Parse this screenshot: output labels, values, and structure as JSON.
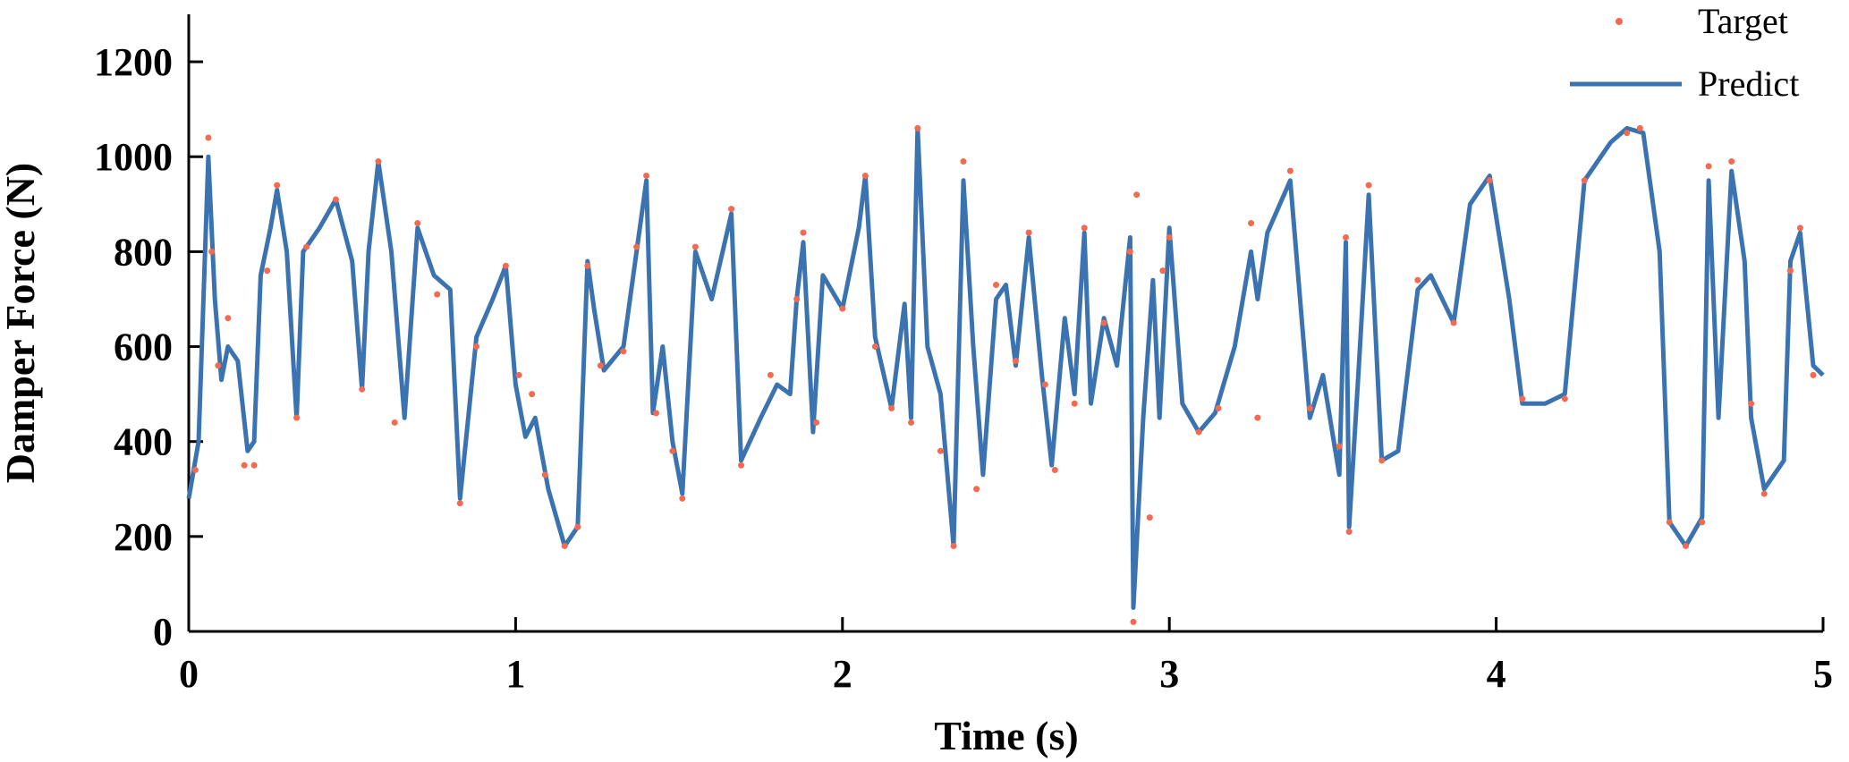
{
  "chart_data": {
    "type": "line",
    "xlabel": "Time (s)",
    "ylabel": "Damper Force (N)",
    "xlim": [
      0,
      5
    ],
    "xticks": [
      0,
      1,
      2,
      3,
      4,
      5
    ],
    "ylim": [
      0,
      1300
    ],
    "yticks": [
      0,
      200,
      400,
      600,
      800,
      1000,
      1200
    ],
    "legend": "upper right",
    "series": [
      {
        "name": "Target",
        "color": "#f26a4f",
        "mode": "markers",
        "x": [
          0.02,
          0.06,
          0.07,
          0.09,
          0.12,
          0.17,
          0.2,
          0.24,
          0.27,
          0.33,
          0.36,
          0.45,
          0.53,
          0.58,
          0.63,
          0.7,
          0.76,
          0.83,
          0.88,
          0.97,
          1.01,
          1.05,
          1.09,
          1.15,
          1.19,
          1.22,
          1.26,
          1.33,
          1.37,
          1.4,
          1.43,
          1.48,
          1.51,
          1.55,
          1.66,
          1.69,
          1.78,
          1.86,
          1.88,
          1.92,
          2.0,
          2.07,
          2.1,
          2.15,
          2.21,
          2.23,
          2.3,
          2.34,
          2.37,
          2.41,
          2.47,
          2.53,
          2.57,
          2.62,
          2.65,
          2.71,
          2.74,
          2.8,
          2.88,
          2.89,
          2.9,
          2.94,
          2.98,
          3.0,
          3.09,
          3.15,
          3.25,
          3.27,
          3.37,
          3.43,
          3.52,
          3.54,
          3.55,
          3.61,
          3.65,
          3.76,
          3.87,
          3.98,
          4.08,
          4.21,
          4.27,
          4.4,
          4.44,
          4.53,
          4.58,
          4.63,
          4.65,
          4.72,
          4.78,
          4.82,
          4.9,
          4.93,
          4.97
        ],
        "values": [
          340,
          1040,
          800,
          560,
          660,
          350,
          350,
          760,
          940,
          450,
          810,
          910,
          510,
          990,
          440,
          860,
          710,
          270,
          600,
          770,
          540,
          500,
          330,
          180,
          220,
          770,
          560,
          590,
          810,
          960,
          460,
          380,
          280,
          810,
          890,
          350,
          540,
          700,
          840,
          440,
          680,
          960,
          600,
          470,
          440,
          1060,
          380,
          180,
          990,
          300,
          730,
          570,
          840,
          520,
          340,
          480,
          850,
          650,
          800,
          20,
          920,
          240,
          760,
          830,
          420,
          470,
          860,
          450,
          970,
          470,
          390,
          830,
          210,
          940,
          360,
          740,
          650,
          950,
          490,
          490,
          950,
          1050,
          1060,
          230,
          180,
          230,
          980,
          990,
          480,
          290,
          760,
          850,
          540
        ]
      },
      {
        "name": "Predict",
        "color": "#3b73b1",
        "mode": "lines",
        "x": [
          0,
          0.03,
          0.06,
          0.08,
          0.1,
          0.12,
          0.15,
          0.18,
          0.2,
          0.22,
          0.25,
          0.27,
          0.3,
          0.33,
          0.35,
          0.4,
          0.45,
          0.5,
          0.53,
          0.55,
          0.58,
          0.62,
          0.66,
          0.7,
          0.75,
          0.8,
          0.83,
          0.88,
          0.93,
          0.97,
          1.0,
          1.03,
          1.06,
          1.1,
          1.15,
          1.19,
          1.22,
          1.24,
          1.27,
          1.33,
          1.37,
          1.4,
          1.42,
          1.45,
          1.48,
          1.51,
          1.55,
          1.6,
          1.66,
          1.69,
          1.75,
          1.8,
          1.84,
          1.86,
          1.88,
          1.91,
          1.94,
          2.0,
          2.05,
          2.07,
          2.1,
          2.15,
          2.19,
          2.21,
          2.23,
          2.26,
          2.3,
          2.34,
          2.37,
          2.4,
          2.43,
          2.47,
          2.5,
          2.53,
          2.57,
          2.61,
          2.64,
          2.68,
          2.71,
          2.74,
          2.76,
          2.8,
          2.84,
          2.88,
          2.89,
          2.92,
          2.95,
          2.97,
          3.0,
          3.04,
          3.09,
          3.14,
          3.2,
          3.25,
          3.27,
          3.3,
          3.37,
          3.43,
          3.47,
          3.52,
          3.54,
          3.55,
          3.58,
          3.61,
          3.65,
          3.7,
          3.76,
          3.8,
          3.87,
          3.92,
          3.98,
          4.04,
          4.08,
          4.15,
          4.21,
          4.27,
          4.35,
          4.4,
          4.45,
          4.5,
          4.53,
          4.58,
          4.63,
          4.65,
          4.68,
          4.72,
          4.76,
          4.78,
          4.82,
          4.88,
          4.9,
          4.93,
          4.97,
          5.0
        ],
        "values": [
          280,
          400,
          1000,
          700,
          530,
          600,
          570,
          380,
          400,
          750,
          850,
          930,
          800,
          450,
          800,
          850,
          910,
          780,
          510,
          800,
          990,
          800,
          450,
          850,
          750,
          720,
          280,
          620,
          700,
          770,
          520,
          410,
          450,
          300,
          180,
          220,
          780,
          680,
          550,
          600,
          800,
          950,
          460,
          600,
          400,
          290,
          800,
          700,
          880,
          360,
          450,
          520,
          500,
          700,
          820,
          420,
          750,
          680,
          850,
          960,
          620,
          470,
          690,
          450,
          1060,
          600,
          500,
          180,
          950,
          600,
          330,
          700,
          730,
          560,
          830,
          540,
          350,
          660,
          500,
          840,
          480,
          660,
          560,
          830,
          50,
          450,
          740,
          450,
          850,
          480,
          420,
          460,
          600,
          800,
          700,
          840,
          950,
          450,
          540,
          330,
          820,
          220,
          560,
          920,
          360,
          380,
          720,
          750,
          650,
          900,
          960,
          700,
          480,
          480,
          500,
          950,
          1030,
          1060,
          1050,
          800,
          230,
          180,
          240,
          950,
          450,
          970,
          780,
          450,
          300,
          360,
          780,
          840,
          560,
          540
        ]
      }
    ]
  }
}
